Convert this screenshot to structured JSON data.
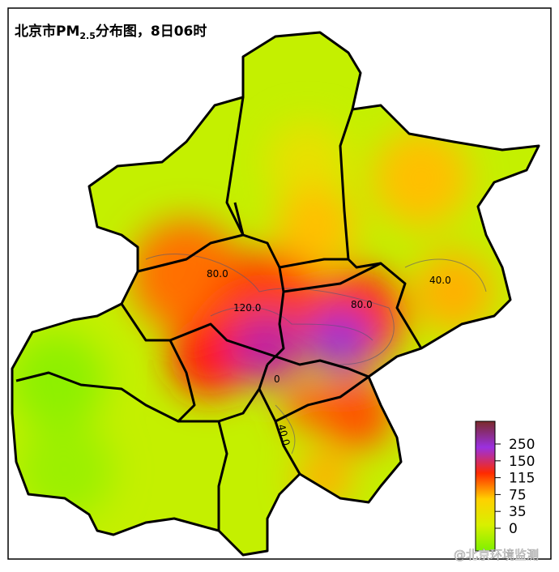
{
  "title": {
    "prefix": "北京市PM",
    "subscript": "2.5",
    "suffix": "分布图，8日06时"
  },
  "contour_labels": [
    "80.0",
    "120.0",
    "80.0",
    "40.0",
    "40.0",
    "0"
  ],
  "colorbar": {
    "ticks": [
      250,
      150,
      115,
      75,
      35,
      0
    ]
  },
  "watermark": "@北京环境监测"
}
